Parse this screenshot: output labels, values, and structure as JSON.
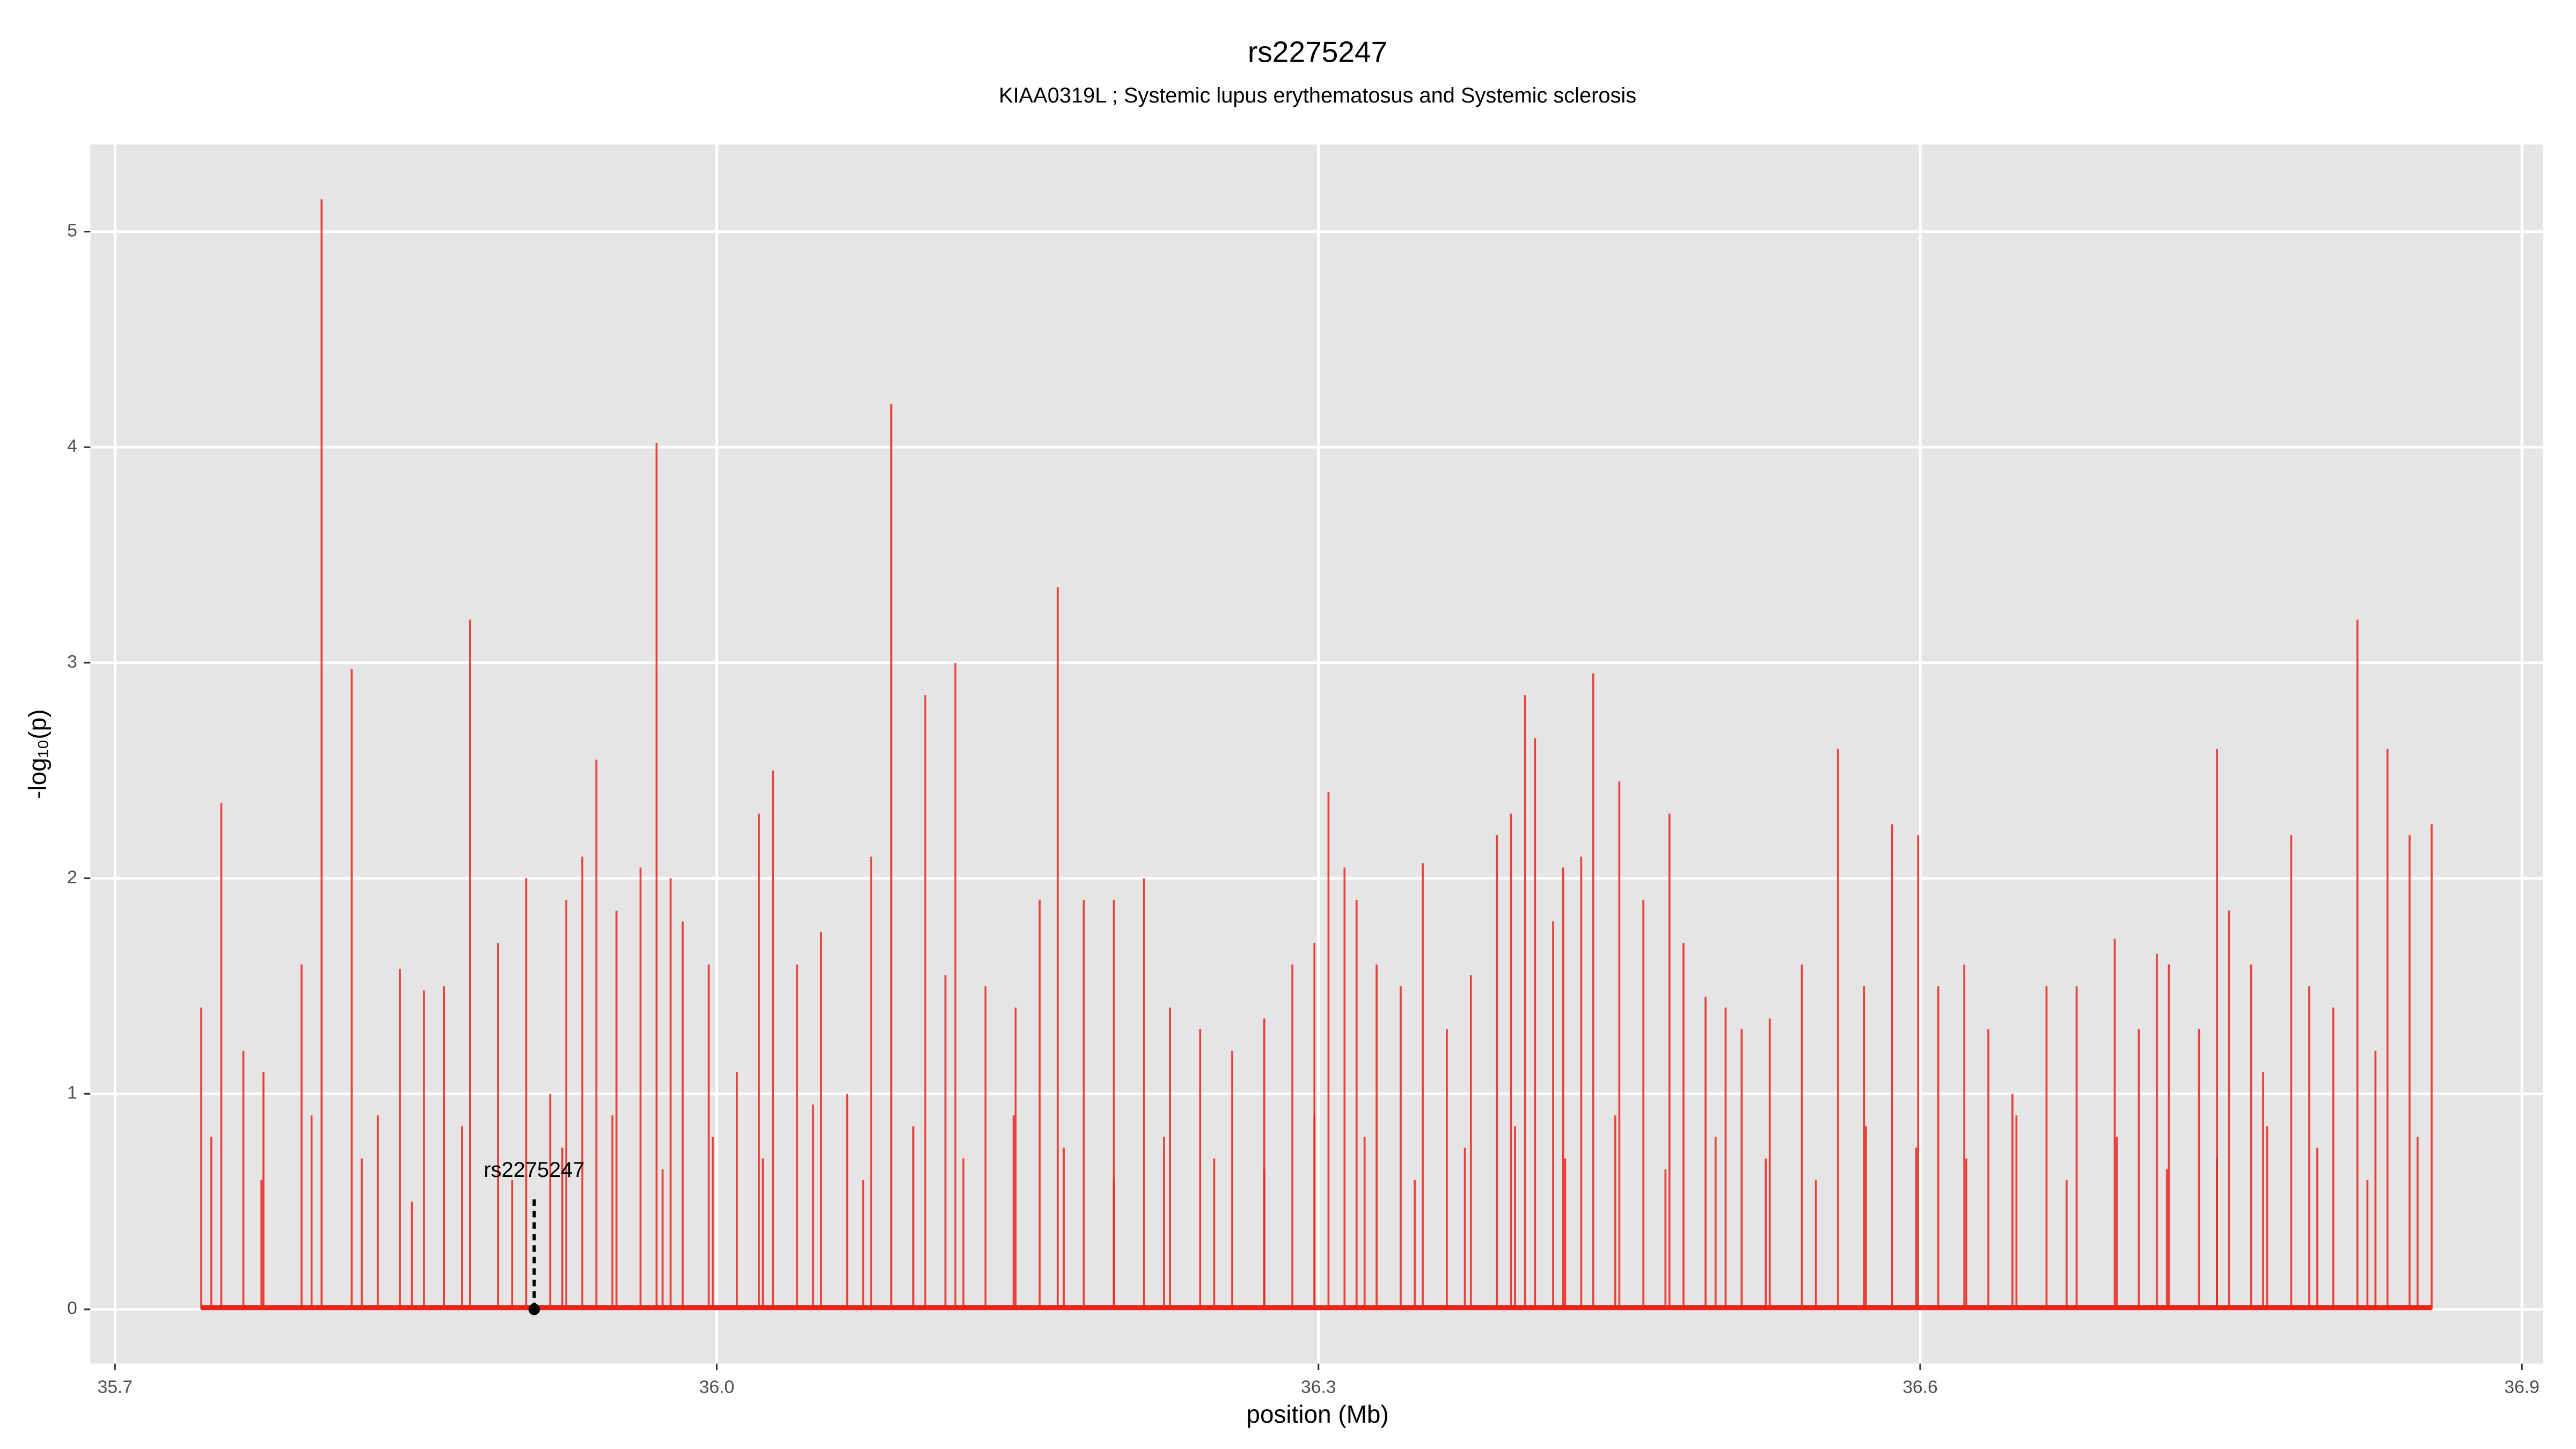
{
  "chart_data": {
    "type": "spike",
    "title": "rs2275247",
    "subtitle": "KIAA0319L ; Systemic lupus erythematosus and Systemic sclerosis",
    "xlabel": "position (Mb)",
    "ylabel": "-log₁₀(p)",
    "color": "#e8251c",
    "xlim": [
      35.6877,
      36.9106
    ],
    "ylim": [
      -0.2515,
      5.404
    ],
    "xticks": [
      {
        "value": 35.7,
        "label": "35.7"
      },
      {
        "value": 36.0,
        "label": "36.0"
      },
      {
        "value": 36.3,
        "label": "36.3"
      },
      {
        "value": 36.6,
        "label": "36.6"
      },
      {
        "value": 36.9,
        "label": "36.9"
      }
    ],
    "yticks": [
      0,
      1,
      2,
      3,
      4,
      5
    ],
    "grid": true,
    "x": [
      35.743,
      35.753,
      35.764,
      35.774,
      35.793,
      35.803,
      35.818,
      35.831,
      35.842,
      35.854,
      35.864,
      35.877,
      35.891,
      35.905,
      35.917,
      35.925,
      35.933,
      35.94,
      35.95,
      35.962,
      35.97,
      35.977,
      35.983,
      35.996,
      36.01,
      36.021,
      36.028,
      36.04,
      36.052,
      36.065,
      36.077,
      36.087,
      36.104,
      36.114,
      36.119,
      36.134,
      36.149,
      36.161,
      36.17,
      36.183,
      36.198,
      36.213,
      36.226,
      36.241,
      36.257,
      36.273,
      36.287,
      36.298,
      36.305,
      36.313,
      36.319,
      36.329,
      36.341,
      36.352,
      36.364,
      36.376,
      36.389,
      36.396,
      36.403,
      36.408,
      36.417,
      36.422,
      36.431,
      36.437,
      36.45,
      36.462,
      36.475,
      36.482,
      36.493,
      36.503,
      36.511,
      36.525,
      36.541,
      36.559,
      36.572,
      36.586,
      36.599,
      36.609,
      36.622,
      36.634,
      36.646,
      36.663,
      36.678,
      36.697,
      36.709,
      36.718,
      36.724,
      36.739,
      36.748,
      36.754,
      36.765,
      36.771,
      36.785,
      36.794,
      36.806,
      36.818,
      36.827,
      36.833,
      36.844,
      36.855,
      35.748,
      35.773,
      35.798,
      35.823,
      35.848,
      35.873,
      35.898,
      35.923,
      35.948,
      35.973,
      35.998,
      36.023,
      36.048,
      36.073,
      36.098,
      36.123,
      36.148,
      36.173,
      36.198,
      36.223,
      36.248,
      36.273,
      36.298,
      36.323,
      36.348,
      36.373,
      36.398,
      36.423,
      36.448,
      36.473,
      36.498,
      36.523,
      36.548,
      36.573,
      36.598,
      36.623,
      36.648,
      36.673,
      36.698,
      36.723,
      36.748,
      36.773,
      36.798,
      36.823,
      36.848
    ],
    "values": [
      1.4,
      2.35,
      1.2,
      1.1,
      1.6,
      5.15,
      2.97,
      0.9,
      1.58,
      1.48,
      1.5,
      3.2,
      1.7,
      2.0,
      1.0,
      1.9,
      2.1,
      2.55,
      1.85,
      2.05,
      4.02,
      2.0,
      1.8,
      1.6,
      1.1,
      2.3,
      2.5,
      1.6,
      1.75,
      1.0,
      2.1,
      4.2,
      2.85,
      1.55,
      3.0,
      1.5,
      1.4,
      1.9,
      3.35,
      1.9,
      1.9,
      2.0,
      1.4,
      1.3,
      1.2,
      1.35,
      1.6,
      1.7,
      2.4,
      2.05,
      1.9,
      1.6,
      1.5,
      2.07,
      1.3,
      1.55,
      2.2,
      2.3,
      2.85,
      2.65,
      1.8,
      2.05,
      2.1,
      2.95,
      2.45,
      1.9,
      2.3,
      1.7,
      1.45,
      1.4,
      1.3,
      1.35,
      1.6,
      2.6,
      1.5,
      2.25,
      2.2,
      1.5,
      1.6,
      1.3,
      1.0,
      1.5,
      1.5,
      1.72,
      1.3,
      1.65,
      1.6,
      1.3,
      2.6,
      1.85,
      1.6,
      1.1,
      2.2,
      1.5,
      1.4,
      3.2,
      1.2,
      2.6,
      2.2,
      2.25,
      0.8,
      0.6,
      0.9,
      0.7,
      0.5,
      0.85,
      0.6,
      0.75,
      0.9,
      0.65,
      0.8,
      0.7,
      0.95,
      0.6,
      0.85,
      0.7,
      0.9,
      0.75,
      0.6,
      0.8,
      0.7,
      0.65,
      0.9,
      0.8,
      0.6,
      0.75,
      0.85,
      0.7,
      0.9,
      0.65,
      0.8,
      0.7,
      0.6,
      0.85,
      0.75,
      0.7,
      0.9,
      0.6,
      0.8,
      0.65,
      0.7,
      0.85,
      0.75,
      0.6,
      0.8
    ],
    "annotations": [
      {
        "text": "rs2275247",
        "x": 35.909,
        "y": 0
      }
    ]
  }
}
